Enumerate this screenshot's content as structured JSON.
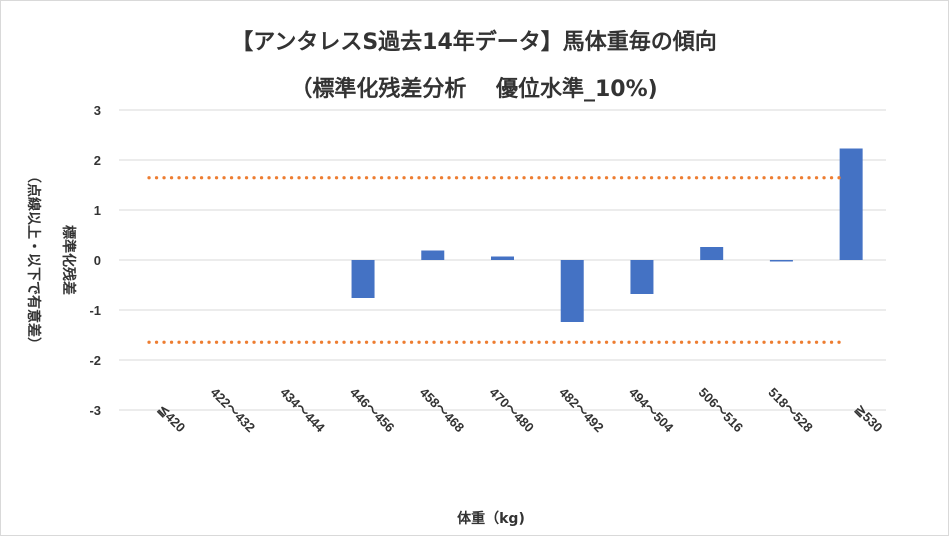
{
  "chart_data": {
    "type": "bar",
    "title": "【アンタレスS過去14年データ】馬体重毎の傾向",
    "subtitle": "（標準化残差分析　 優位水準_10%)",
    "xlabel": "体重（kg)",
    "ylabel_lines": [
      "標準化残差",
      "（点線以上・以下で有意差）"
    ],
    "categories": [
      "≦420",
      "422～432",
      "434～444",
      "446～456",
      "458～468",
      "470～480",
      "482～492",
      "494～504",
      "506～516",
      "518～528",
      "≧530"
    ],
    "values": [
      0,
      0,
      0,
      -0.76,
      0.19,
      0.07,
      -1.24,
      -0.68,
      0.26,
      -0.03,
      2.23
    ],
    "ylim": [
      -3,
      3
    ],
    "yticks": [
      3,
      2,
      1,
      0,
      -1,
      -2,
      -3
    ],
    "threshold_lines": [
      1.645,
      -1.645
    ],
    "grid": true,
    "legend": "none",
    "colors": {
      "bar": "#4472c4",
      "threshold": "#ed7d31",
      "grid": "#d9d9d9",
      "text": "#333333"
    }
  }
}
